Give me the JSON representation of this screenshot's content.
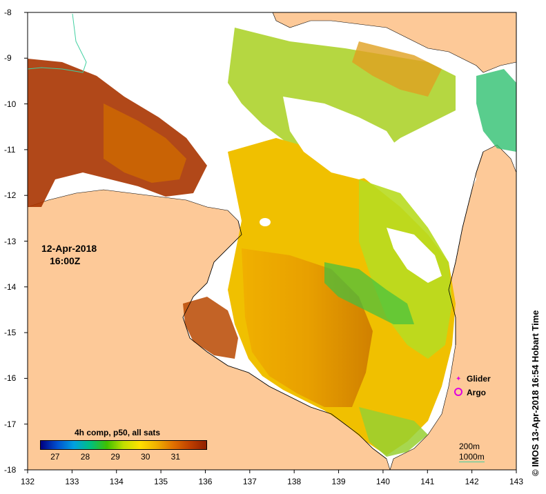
{
  "map": {
    "x_ticks": [
      "132",
      "133",
      "134",
      "135",
      "136",
      "137",
      "138",
      "139",
      "140",
      "141",
      "142",
      "143"
    ],
    "y_ticks": [
      "-8",
      "-9",
      "-10",
      "-11",
      "-12",
      "-13",
      "-14",
      "-15",
      "-16",
      "-17",
      "-18"
    ],
    "date_line1": "12-Apr-2018",
    "date_line2": "16:00Z",
    "credit": "© IMOS 13-Apr-2018 16:54 Hobart Time",
    "legend": {
      "glider": "Glider",
      "argo": "Argo",
      "glider_color": "#e000e0",
      "argo_color": "#e000e0"
    },
    "colorbar": {
      "title": "4h comp, p50, all sats",
      "ticks": [
        "27",
        "28",
        "29",
        "30",
        "31"
      ],
      "range": [
        26.5,
        32
      ],
      "colors": [
        "#000080",
        "#0050d0",
        "#00a0e0",
        "#00c080",
        "#40c000",
        "#c0e000",
        "#ffe000",
        "#f0b000",
        "#e07000",
        "#c04000",
        "#902000"
      ]
    },
    "depth_labels": [
      "200m",
      "1000m"
    ],
    "colors": {
      "land": "#fdc998",
      "nodata": "#ffffff",
      "contour": "#40d0a0"
    }
  }
}
